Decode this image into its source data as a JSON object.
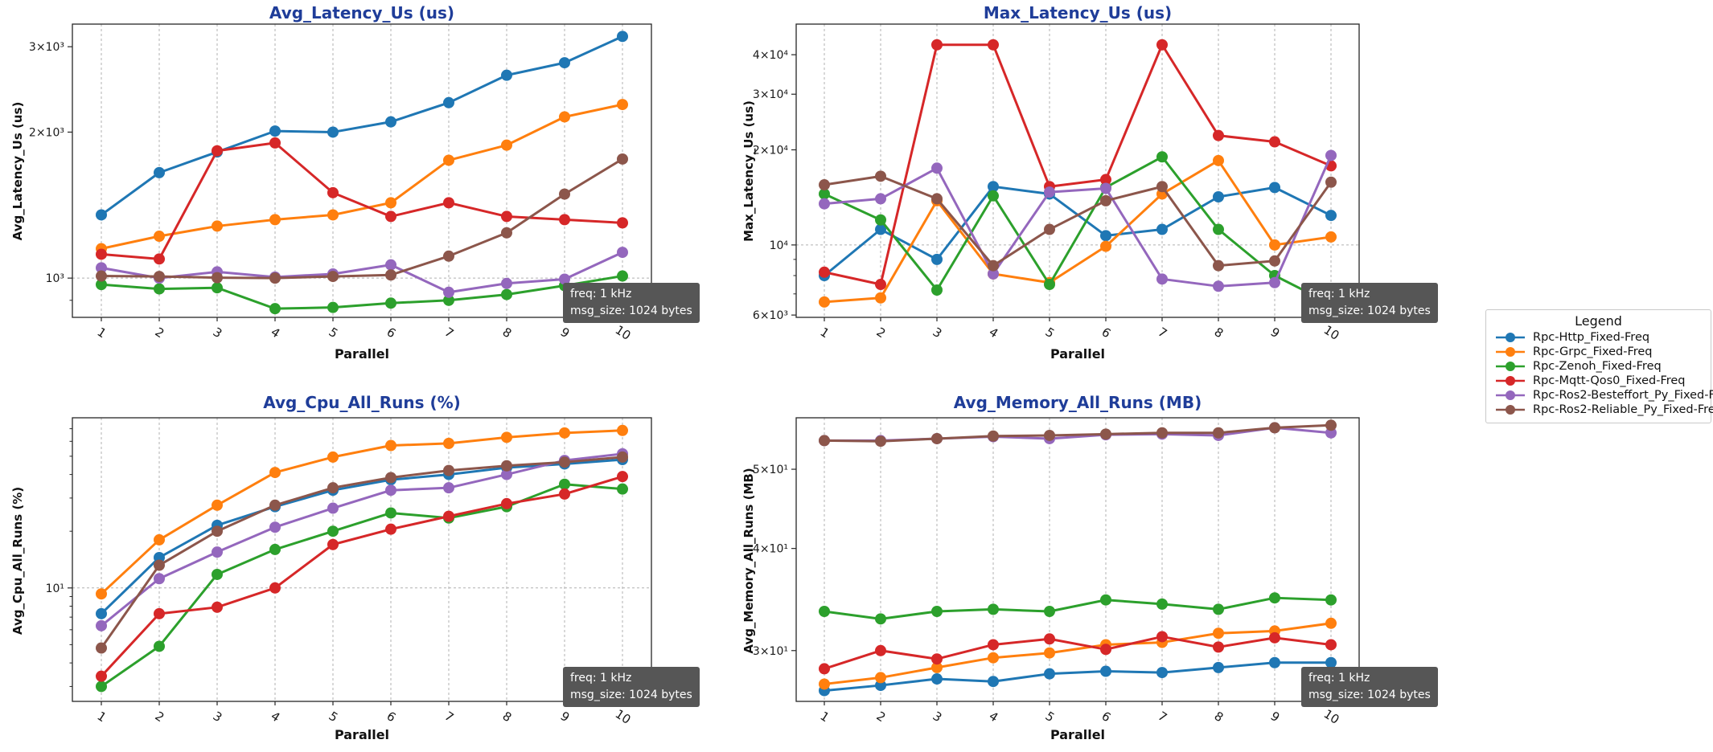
{
  "style": {
    "title_color": "#1f3d99",
    "grid_color": "#b0b0b0",
    "spine_color": "#262626",
    "annotation_bg": "#565656"
  },
  "annotation": {
    "line1": "freq: 1 kHz",
    "line2": "msg_size: 1024 bytes"
  },
  "legend": {
    "title": "Legend",
    "position": "right",
    "items": [
      {
        "label": "Rpc-Http_Fixed-Freq",
        "color": "#1f77b4"
      },
      {
        "label": "Rpc-Grpc_Fixed-Freq",
        "color": "#ff7f0e"
      },
      {
        "label": "Rpc-Zenoh_Fixed-Freq",
        "color": "#2ca02c"
      },
      {
        "label": "Rpc-Mqtt-Qos0_Fixed-Freq",
        "color": "#d62728"
      },
      {
        "label": "Rpc-Ros2-Besteffort_Py_Fixed-Freq",
        "color": "#9467bd"
      },
      {
        "label": "Rpc-Ros2-Reliable_Py_Fixed-Freq",
        "color": "#8c564b"
      }
    ]
  },
  "chart_data": [
    {
      "type": "line",
      "title": "Avg_Latency_Us  (us)",
      "ylabel": "Avg_Latency_Us (us)",
      "xlabel": "Parallel",
      "yscale": "log",
      "grid": "dashed",
      "x": [
        1,
        2,
        3,
        4,
        5,
        6,
        7,
        8,
        9,
        10
      ],
      "ylim": [
        830,
        3340
      ],
      "yticks": [
        {
          "value": 1000,
          "label": "10³",
          "grid": true
        },
        {
          "value": 2000,
          "label": "2×10³"
        },
        {
          "value": 3000,
          "label": "3×10³"
        }
      ],
      "series": [
        {
          "name": "Rpc-Http_Fixed-Freq",
          "color": "#1f77b4",
          "values": [
            1350,
            1650,
            1820,
            2010,
            2000,
            2100,
            2300,
            2620,
            2780,
            3150
          ]
        },
        {
          "name": "Rpc-Grpc_Fixed-Freq",
          "color": "#ff7f0e",
          "values": [
            1150,
            1220,
            1280,
            1320,
            1350,
            1430,
            1750,
            1880,
            2150,
            2280
          ]
        },
        {
          "name": "Rpc-Zenoh_Fixed-Freq",
          "color": "#2ca02c",
          "values": [
            970,
            950,
            955,
            865,
            870,
            888,
            900,
            925,
            965,
            1010
          ]
        },
        {
          "name": "Rpc-Mqtt-Qos0_Fixed-Freq",
          "color": "#d62728",
          "values": [
            1120,
            1095,
            1830,
            1900,
            1500,
            1340,
            1430,
            1340,
            1320,
            1300
          ]
        },
        {
          "name": "Rpc-Ros2-Besteffort_Py_Fixed-Freq",
          "color": "#9467bd",
          "values": [
            1050,
            1000,
            1030,
            1005,
            1020,
            1065,
            935,
            975,
            995,
            1130
          ]
        },
        {
          "name": "Rpc-Ros2-Reliable_Py_Fixed-Freq",
          "color": "#8c564b",
          "values": [
            1010,
            1008,
            1002,
            1000,
            1008,
            1015,
            1110,
            1240,
            1490,
            1760
          ]
        }
      ]
    },
    {
      "type": "line",
      "title": "Max_Latency_Us  (us)",
      "ylabel": "Max_Latency_Us (us)",
      "xlabel": "Parallel",
      "yscale": "log",
      "grid": "dashed",
      "x": [
        1,
        2,
        3,
        4,
        5,
        6,
        7,
        8,
        9,
        10
      ],
      "ylim": [
        5900,
        50000
      ],
      "yticks": [
        {
          "value": 6000,
          "label": "6×10³"
        },
        {
          "value": 10000,
          "label": "10⁴",
          "grid": true
        },
        {
          "value": 20000,
          "label": "2×10⁴"
        },
        {
          "value": 30000,
          "label": "3×10⁴"
        },
        {
          "value": 40000,
          "label": "4×10⁴"
        }
      ],
      "series": [
        {
          "name": "Rpc-Http_Fixed-Freq",
          "color": "#1f77b4",
          "values": [
            8000,
            11200,
            9000,
            15300,
            14500,
            10700,
            11200,
            14200,
            15200,
            12400
          ]
        },
        {
          "name": "Rpc-Grpc_Fixed-Freq",
          "color": "#ff7f0e",
          "values": [
            6600,
            6800,
            13800,
            8100,
            7600,
            9900,
            14500,
            18500,
            10000,
            10600
          ]
        },
        {
          "name": "Rpc-Zenoh_Fixed-Freq",
          "color": "#2ca02c",
          "values": [
            14500,
            12000,
            7200,
            14300,
            7500,
            15200,
            19000,
            11200,
            8000,
            6500
          ]
        },
        {
          "name": "Rpc-Mqtt-Qos0_Fixed-Freq",
          "color": "#d62728",
          "values": [
            8200,
            7500,
            43000,
            43000,
            15300,
            16100,
            43000,
            22200,
            21200,
            17800
          ]
        },
        {
          "name": "Rpc-Ros2-Besteffort_Py_Fixed-Freq",
          "color": "#9467bd",
          "values": [
            13500,
            14000,
            17500,
            8100,
            14700,
            15100,
            7800,
            7400,
            7600,
            19200
          ]
        },
        {
          "name": "Rpc-Ros2-Reliable_Py_Fixed-Freq",
          "color": "#8c564b",
          "values": [
            15500,
            16500,
            14000,
            8600,
            11200,
            13800,
            15300,
            8600,
            8900,
            15800
          ]
        }
      ]
    },
    {
      "type": "line",
      "title": "Avg_Cpu_All_Runs  (%)",
      "ylabel": "Avg_Cpu_All_Runs (%)",
      "xlabel": "Parallel",
      "yscale": "log",
      "grid": "dashed",
      "x": [
        1,
        2,
        3,
        4,
        5,
        6,
        7,
        8,
        9,
        10
      ],
      "ylim": [
        2.5,
        80
      ],
      "yticks": [
        {
          "value": 10,
          "label": "10¹",
          "grid": true
        }
      ],
      "series": [
        {
          "name": "Rpc-Http_Fixed-Freq",
          "color": "#1f77b4",
          "values": [
            7.3,
            14.5,
            21.5,
            27,
            33,
            37.5,
            40,
            43.5,
            45.5,
            48
          ]
        },
        {
          "name": "Rpc-Grpc_Fixed-Freq",
          "color": "#ff7f0e",
          "values": [
            9.3,
            18,
            27.5,
            41,
            49.5,
            57,
            58.5,
            63,
            66.5,
            68.5
          ]
        },
        {
          "name": "Rpc-Zenoh_Fixed-Freq",
          "color": "#2ca02c",
          "values": [
            3.0,
            4.9,
            11.8,
            16,
            20,
            25,
            23.5,
            27,
            35.5,
            33.5
          ]
        },
        {
          "name": "Rpc-Mqtt-Qos0_Fixed-Freq",
          "color": "#d62728",
          "values": [
            3.4,
            7.3,
            7.9,
            10,
            17,
            20.5,
            24,
            28,
            31.5,
            39
          ]
        },
        {
          "name": "Rpc-Ros2-Besteffort_Py_Fixed-Freq",
          "color": "#9467bd",
          "values": [
            6.3,
            11.2,
            15.5,
            21,
            26.5,
            33,
            34,
            40,
            47.5,
            51.5
          ]
        },
        {
          "name": "Rpc-Ros2-Reliable_Py_Fixed-Freq",
          "color": "#8c564b",
          "values": [
            4.8,
            13.2,
            20,
            27.5,
            34,
            38.5,
            42,
            44.5,
            46.5,
            49.5
          ]
        }
      ]
    },
    {
      "type": "line",
      "title": "Avg_Memory_All_Runs  (MB)",
      "ylabel": "Avg_Memory_All_Runs (MB)",
      "xlabel": "Parallel",
      "yscale": "log",
      "grid": "dashed",
      "x": [
        1,
        2,
        3,
        4,
        5,
        6,
        7,
        8,
        9,
        10
      ],
      "ylim": [
        26,
        57.8
      ],
      "yticks": [
        {
          "value": 30,
          "label": "3×10¹"
        },
        {
          "value": 40,
          "label": "4×10¹"
        },
        {
          "value": 50,
          "label": "5×10¹"
        }
      ],
      "series": [
        {
          "name": "Rpc-Http_Fixed-Freq",
          "color": "#1f77b4",
          "values": [
            26.8,
            27.2,
            27.7,
            27.5,
            28.1,
            28.3,
            28.2,
            28.6,
            29.0,
            29.0
          ]
        },
        {
          "name": "Rpc-Grpc_Fixed-Freq",
          "color": "#ff7f0e",
          "values": [
            27.3,
            27.8,
            28.6,
            29.4,
            29.8,
            30.5,
            30.7,
            31.5,
            31.7,
            32.4
          ]
        },
        {
          "name": "Rpc-Zenoh_Fixed-Freq",
          "color": "#2ca02c",
          "values": [
            33.5,
            32.8,
            33.5,
            33.7,
            33.5,
            34.6,
            34.2,
            33.7,
            34.8,
            34.6
          ]
        },
        {
          "name": "Rpc-Mqtt-Qos0_Fixed-Freq",
          "color": "#d62728",
          "values": [
            28.5,
            30.0,
            29.3,
            30.5,
            31.0,
            30.1,
            31.2,
            30.3,
            31.1,
            30.5
          ]
        },
        {
          "name": "Rpc-Ros2-Besteffort_Py_Fixed-Freq",
          "color": "#9467bd",
          "values": [
            54.2,
            54.2,
            54.5,
            54.8,
            54.5,
            55.1,
            55.2,
            55.0,
            56.2,
            55.4
          ]
        },
        {
          "name": "Rpc-Ros2-Reliable_Py_Fixed-Freq",
          "color": "#8c564b",
          "values": [
            54.2,
            54.1,
            54.5,
            54.9,
            55.0,
            55.2,
            55.4,
            55.4,
            56.2,
            56.6
          ]
        }
      ]
    }
  ]
}
